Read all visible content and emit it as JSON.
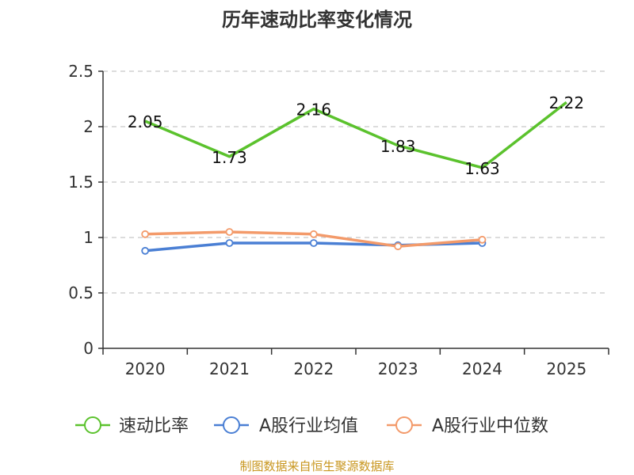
{
  "chart_data": {
    "type": "line",
    "title": "历年速动比率变化情况",
    "categories": [
      "2020",
      "2021",
      "2022",
      "2023",
      "2024",
      "2025"
    ],
    "ylim": [
      0,
      2.5
    ],
    "yticks": [
      "0",
      "0.5",
      "1",
      "1.5",
      "2",
      "2.5"
    ],
    "grid": true,
    "legend_position": "bottom",
    "series": [
      {
        "name": "速动比率",
        "color": "#5bc22d",
        "values": [
          2.05,
          1.73,
          2.16,
          1.83,
          1.63,
          2.22
        ],
        "labels": [
          "2.05",
          "1.73",
          "2.16",
          "1.83",
          "1.63",
          "2.22"
        ],
        "show_markers": false,
        "show_labels": true
      },
      {
        "name": "A股行业均值",
        "color": "#4a7fd4",
        "values": [
          0.88,
          0.95,
          0.95,
          0.93,
          0.95,
          null
        ],
        "show_markers": true,
        "show_labels": false
      },
      {
        "name": "A股行业中位数",
        "color": "#f39a6a",
        "values": [
          1.03,
          1.05,
          1.03,
          0.92,
          0.98,
          null
        ],
        "show_markers": true,
        "show_labels": false
      }
    ]
  },
  "footer": "制图数据来自恒生聚源数据库"
}
